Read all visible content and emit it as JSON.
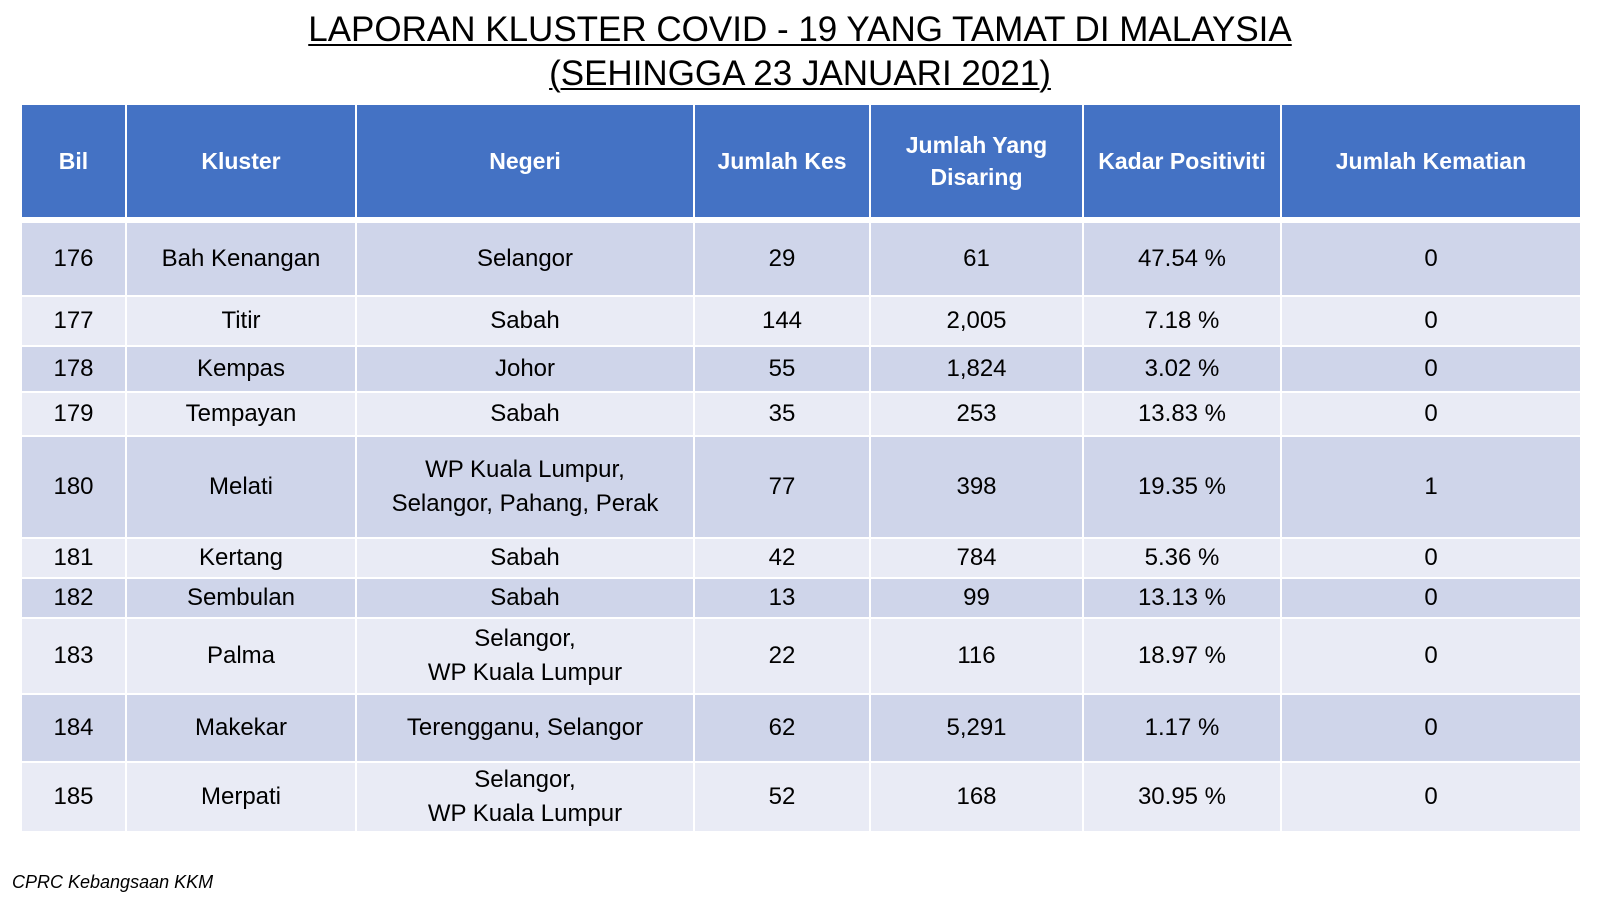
{
  "title": {
    "line1": "LAPORAN KLUSTER COVID - 19 YANG TAMAT DI MALAYSIA",
    "line2": "(SEHINGGA 23 JANUARI 2021)"
  },
  "table": {
    "headers": [
      "Bil",
      "Kluster",
      "Negeri",
      "Jumlah Kes",
      "Jumlah Yang\nDisaring",
      "Kadar Positiviti",
      "Jumlah Kematian"
    ],
    "rows": [
      [
        "176",
        "Bah Kenangan",
        "Selangor",
        "29",
        "61",
        "47.54 %",
        "0"
      ],
      [
        "177",
        "Titir",
        "Sabah",
        "144",
        "2,005",
        "7.18 %",
        "0"
      ],
      [
        "178",
        "Kempas",
        "Johor",
        "55",
        "1,824",
        "3.02 %",
        "0"
      ],
      [
        "179",
        "Tempayan",
        "Sabah",
        "35",
        "253",
        "13.83 %",
        "0"
      ],
      [
        "180",
        "Melati",
        "WP Kuala Lumpur,\nSelangor, Pahang, Perak",
        "77",
        "398",
        "19.35 %",
        "1"
      ],
      [
        "181",
        "Kertang",
        "Sabah",
        "42",
        "784",
        "5.36 %",
        "0"
      ],
      [
        "182",
        "Sembulan",
        "Sabah",
        "13",
        "99",
        "13.13 %",
        "0"
      ],
      [
        "183",
        "Palma",
        "Selangor,\nWP Kuala Lumpur",
        "22",
        "116",
        "18.97 %",
        "0"
      ],
      [
        "184",
        "Makekar",
        "Terengganu, Selangor",
        "62",
        "5,291",
        "1.17 %",
        "0"
      ],
      [
        "185",
        "Merpati",
        "Selangor,\nWP Kuala Lumpur",
        "52",
        "168",
        "30.95 %",
        "0"
      ]
    ]
  },
  "footer": {
    "source": "CPRC Kebangsaan KKM"
  },
  "colors": {
    "header_bg": "#4472c4",
    "row_dark": "#cfd5ea",
    "row_light": "#e9ebf5"
  }
}
